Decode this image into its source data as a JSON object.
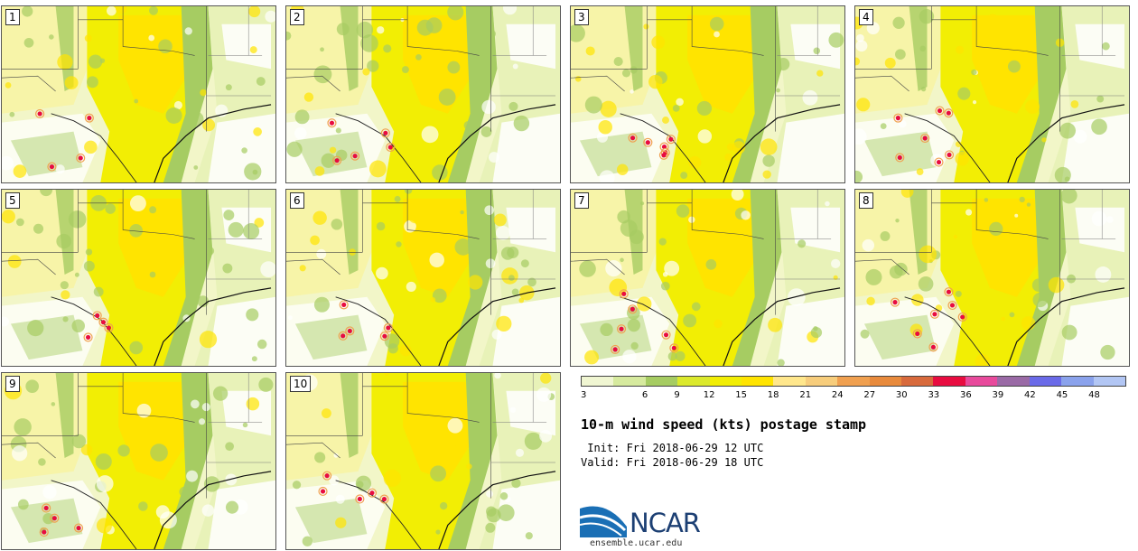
{
  "members": [
    "1",
    "2",
    "3",
    "4",
    "5",
    "6",
    "7",
    "8",
    "9",
    "10"
  ],
  "colorbar": {
    "colors": [
      "#f0f6d2",
      "#d6ea9e",
      "#a6cc62",
      "#dbe92c",
      "#f2ee04",
      "#ffe400",
      "#ffe78c",
      "#f7cd7c",
      "#f0a050",
      "#e88a3c",
      "#d86a3c",
      "#e80c40",
      "#e84a9c",
      "#9a6aa6",
      "#6a6ae8",
      "#8aa2ec",
      "#b2c6f4"
    ],
    "tick_labels": [
      "3",
      "6",
      "9",
      "12",
      "15",
      "18",
      "21",
      "24",
      "27",
      "30",
      "33",
      "36",
      "39",
      "42",
      "45",
      "48"
    ]
  },
  "title": "10-m wind speed (kts) postage stamp",
  "init_text": " Init: Fri 2018-06-29 12 UTC",
  "valid_text": "Valid: Fri 2018-06-29 18 UTC",
  "logo": {
    "name": "ncar-logo",
    "text": "NCAR",
    "url": "ensemble.ucar.edu",
    "color": "#1c3f73",
    "accent": "#1a6fb5"
  },
  "map_colors": {
    "bg": "#f2f6c8",
    "light": "#ffffff",
    "green": "#a6cc62",
    "yellow": "#f2ee04",
    "gold": "#ffe400",
    "orange": "#f0a050",
    "red": "#e80c40"
  }
}
